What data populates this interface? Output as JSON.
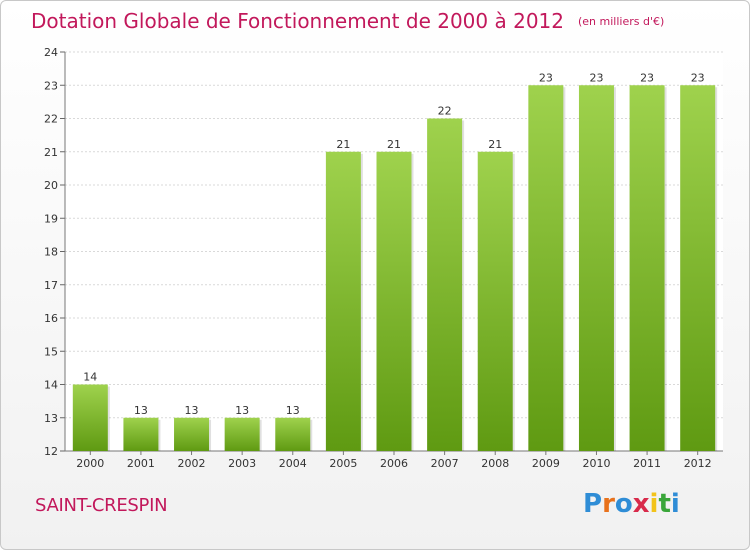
{
  "header": {
    "title": "Dotation Globale de Fonctionnement de 2000 à 2012",
    "units": "(en milliers d'€)"
  },
  "footer": {
    "commune": "SAINT-CRESPIN",
    "logo": "Proxiti"
  },
  "colors": {
    "title": "#c2185b",
    "bar_top": "#9fd24d",
    "bar_bottom": "#5f9a12",
    "logo_letters": [
      "#2f8dd6",
      "#e8721c",
      "#2f8dd6",
      "#d82a4a",
      "#f2c31a",
      "#3aa63a",
      "#2f8dd6"
    ]
  },
  "chart_data": {
    "type": "bar",
    "categories": [
      "2000",
      "2001",
      "2002",
      "2003",
      "2004",
      "2005",
      "2006",
      "2007",
      "2008",
      "2009",
      "2010",
      "2011",
      "2012"
    ],
    "values": [
      14,
      13,
      13,
      13,
      13,
      21,
      21,
      22,
      21,
      23,
      23,
      23,
      23
    ],
    "ylim": [
      12,
      24
    ],
    "yticks": [
      12,
      13,
      14,
      15,
      16,
      17,
      18,
      19,
      20,
      21,
      22,
      23,
      24
    ],
    "grid": true,
    "data_labels": true
  }
}
